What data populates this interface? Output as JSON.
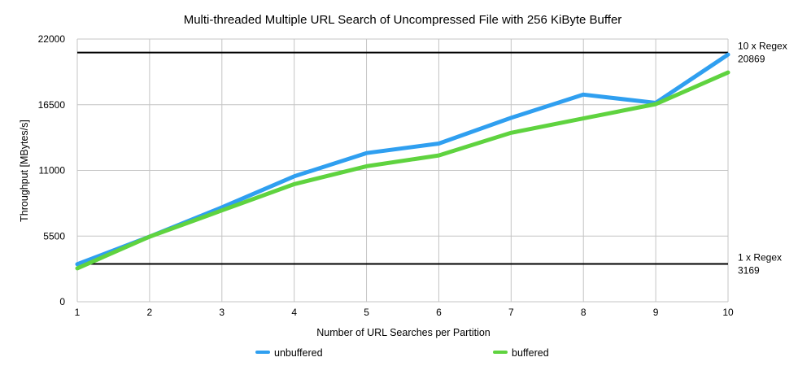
{
  "chart_data": {
    "type": "line",
    "title": "Multi-threaded Multiple URL Search of Uncompressed File with 256 KiByte Buffer",
    "xlabel": "Number of URL Searches per Partition",
    "ylabel": "Throughput [MBytes/s]",
    "x": [
      1,
      2,
      3,
      4,
      5,
      6,
      7,
      8,
      9,
      10
    ],
    "x_ticks": [
      "1",
      "2",
      "3",
      "4",
      "5",
      "6",
      "7",
      "8",
      "9",
      "10"
    ],
    "xlim": [
      1,
      10
    ],
    "y_ticks": [
      "0",
      "5500",
      "11000",
      "16500",
      "22000"
    ],
    "ylim": [
      0,
      22000
    ],
    "grid": true,
    "legend_position": "bottom",
    "series": [
      {
        "name": "unbuffered",
        "color": "#2f9ff0",
        "values": [
          3150,
          5450,
          7900,
          10500,
          12450,
          13250,
          15400,
          17350,
          16650,
          20700
        ]
      },
      {
        "name": "buffered",
        "color": "#5fd33f",
        "values": [
          2800,
          5450,
          7650,
          9850,
          11350,
          12250,
          14150,
          15350,
          16550,
          19200
        ]
      }
    ],
    "reference_lines": [
      {
        "label": "10 x Regex",
        "value_text": "20869",
        "value": 20869
      },
      {
        "label": "1 x Regex",
        "value_text": "3169",
        "value": 3169
      }
    ]
  }
}
